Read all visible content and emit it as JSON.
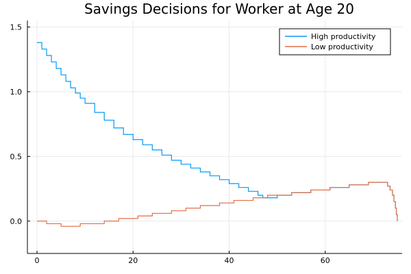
{
  "chart_data": {
    "type": "line",
    "title": "Savings Decisions for Worker at Age 20",
    "xlabel": "",
    "ylabel": "",
    "xlim": [
      -2,
      76
    ],
    "ylim": [
      -0.25,
      1.55
    ],
    "xticks": [
      0,
      20,
      40,
      60
    ],
    "yticks": [
      0.0,
      0.5,
      1.0,
      1.5
    ],
    "xtick_labels": [
      "0",
      "20",
      "40",
      "60"
    ],
    "ytick_labels": [
      "0.0",
      "0.5",
      "1.0",
      "1.5"
    ],
    "grid": true,
    "legend_position": "top-right",
    "line_style": "step",
    "series": [
      {
        "name": "High productivity",
        "color": "#009af9",
        "x": [
          0,
          1,
          2,
          3,
          4,
          5,
          6,
          7,
          8,
          9,
          10,
          12,
          14,
          16,
          18,
          20,
          22,
          24,
          26,
          28,
          30,
          32,
          34,
          36,
          38,
          40,
          42,
          44,
          46,
          47,
          48,
          50,
          53,
          57,
          61,
          65,
          69,
          72,
          73,
          73.5,
          74,
          74.3,
          74.6,
          74.8,
          75
        ],
        "y": [
          1.38,
          1.33,
          1.28,
          1.23,
          1.18,
          1.13,
          1.08,
          1.03,
          0.99,
          0.95,
          0.91,
          0.84,
          0.78,
          0.72,
          0.67,
          0.63,
          0.59,
          0.55,
          0.51,
          0.47,
          0.44,
          0.41,
          0.38,
          0.35,
          0.32,
          0.29,
          0.26,
          0.23,
          0.2,
          0.18,
          0.18,
          0.2,
          0.22,
          0.24,
          0.26,
          0.28,
          0.3,
          0.3,
          0.27,
          0.24,
          0.2,
          0.15,
          0.1,
          0.05,
          0.0
        ]
      },
      {
        "name": "Low productivity",
        "color": "#e26f46",
        "x": [
          0,
          2,
          5,
          9,
          14,
          17,
          21,
          24,
          28,
          31,
          34,
          38,
          41,
          45,
          48,
          53,
          57,
          61,
          65,
          69,
          72,
          73,
          73.5,
          74,
          74.3,
          74.6,
          74.8,
          75
        ],
        "y": [
          0.0,
          -0.02,
          -0.04,
          -0.02,
          0.0,
          0.02,
          0.04,
          0.06,
          0.08,
          0.1,
          0.12,
          0.14,
          0.16,
          0.18,
          0.2,
          0.22,
          0.24,
          0.26,
          0.28,
          0.3,
          0.3,
          0.27,
          0.24,
          0.2,
          0.15,
          0.1,
          0.05,
          0.0
        ]
      }
    ]
  }
}
